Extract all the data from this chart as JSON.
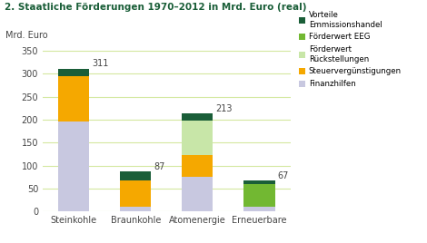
{
  "title": "2. Staatliche Förderungen 1970–2012 in Mrd. Euro (real)",
  "ylabel": "Mrd. Euro",
  "ylim": [
    0,
    360
  ],
  "yticks": [
    0,
    50,
    100,
    150,
    200,
    250,
    300,
    350
  ],
  "categories": [
    "Steinkohle",
    "Braunkohle",
    "Atomenergie",
    "Erneuerbare"
  ],
  "totals": [
    311,
    87,
    213,
    67
  ],
  "segments": {
    "Finanzhilfen": [
      195,
      10,
      75,
      10
    ],
    "Steuervergünstigungen": [
      100,
      58,
      48,
      0
    ],
    "Förderwert Rückstellungen": [
      0,
      0,
      75,
      0
    ],
    "Förderwert EEG": [
      0,
      0,
      0,
      49
    ],
    "Vorteile Emmissionshandel": [
      16,
      19,
      15,
      8
    ]
  },
  "colors": {
    "Finanzhilfen": "#c8c8e0",
    "Steuervergünstigungen": "#f5a800",
    "Förderwert Rückstellungen": "#c8e6a8",
    "Förderwert EEG": "#72b832",
    "Vorteile Emmissionshandel": "#1a5e38"
  },
  "legend_labels": [
    "Vorteile\nEmmissionshandel",
    "Förderwert EEG",
    "Förderwert\nRückstellungen",
    "Steuervergünstigungen",
    "Finanzhilfen"
  ],
  "legend_colors": [
    "#1a5e38",
    "#72b832",
    "#c8e6a8",
    "#f5a800",
    "#c8c8e0"
  ],
  "bar_width": 0.5,
  "grid_color": "#d4e8a0",
  "label_color": "#444444",
  "tick_color": "#444444",
  "title_color": "#1a5e38"
}
